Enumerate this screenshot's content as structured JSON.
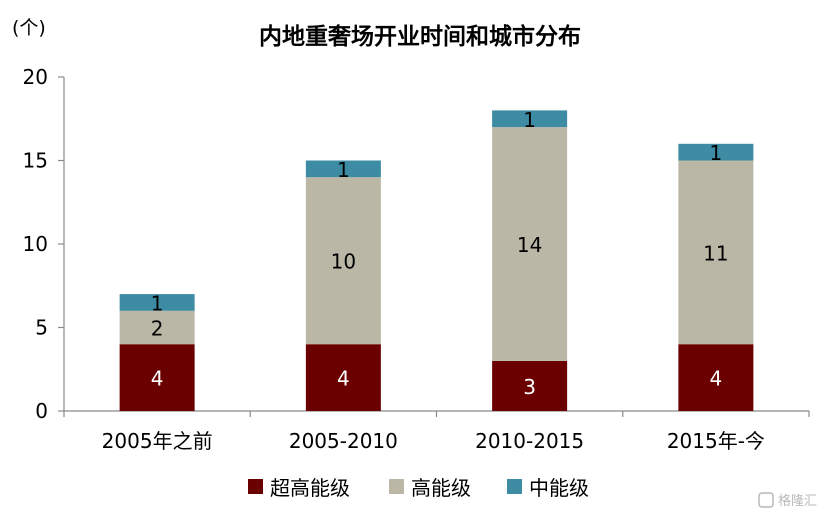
{
  "chart_data": {
    "type": "bar",
    "stacked": true,
    "title": "内地重奢场开业时间和城市分布",
    "ylabel": "(个)",
    "categories": [
      "2005年之前",
      "2005-2010",
      "2010-2015",
      "2015年-今"
    ],
    "series": [
      {
        "name": "超高能级",
        "color": "#6b0000",
        "values": [
          4,
          4,
          3,
          4
        ]
      },
      {
        "name": "高能级",
        "color": "#bab7a6",
        "values": [
          2,
          10,
          14,
          11
        ]
      },
      {
        "name": "中能级",
        "color": "#3d8ca3",
        "values": [
          1,
          1,
          1,
          1
        ]
      }
    ],
    "ylim": [
      0,
      20
    ],
    "yticks": [
      0,
      5,
      10,
      15,
      20
    ],
    "legend_position": "bottom",
    "grid": false
  },
  "watermark": {
    "icon": "gelonghui-logo-icon",
    "text": "格隆汇"
  }
}
